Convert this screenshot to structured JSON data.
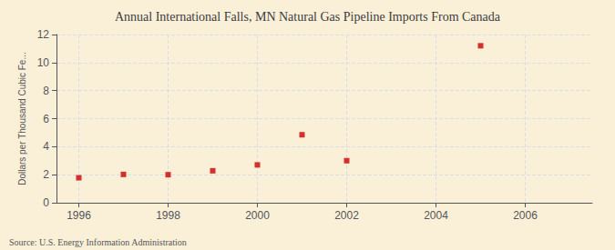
{
  "chart_data": {
    "type": "scatter",
    "title": "Annual International Falls, MN Natural Gas Pipeline Imports From Canada",
    "ylabel": "Dollars per Thousand Cubic Fe...",
    "annotations": [
      "Source: U.S. Energy Information Administration"
    ],
    "x": [
      1996,
      1997,
      1998,
      1999,
      2000,
      2001,
      2002,
      2005
    ],
    "values": [
      1.78,
      2.02,
      2.0,
      2.28,
      2.7,
      4.85,
      3.0,
      11.2
    ],
    "xlim": [
      1995.5,
      2007.5
    ],
    "xticks": [
      1996,
      1998,
      2000,
      2002,
      2004,
      2006
    ],
    "ylim": [
      0,
      12
    ],
    "yticks": [
      0,
      2,
      4,
      6,
      8,
      10,
      12
    ],
    "color": "#cc0000",
    "marker": "square",
    "grid": true
  }
}
